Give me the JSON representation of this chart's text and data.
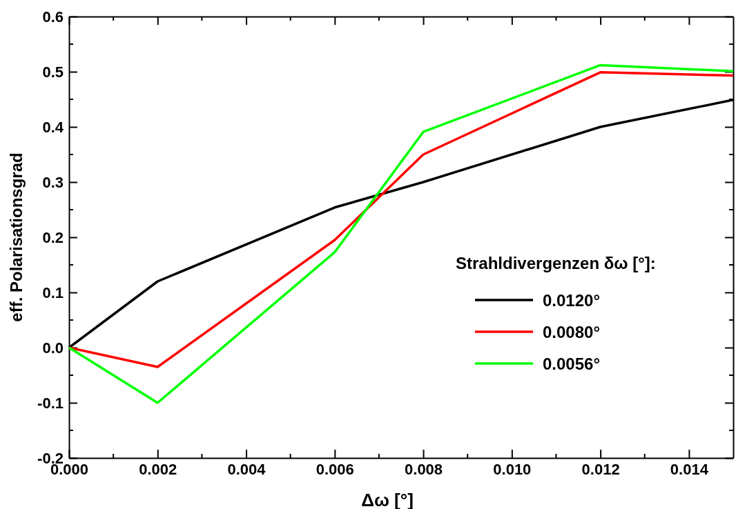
{
  "chart_data": {
    "type": "line",
    "xlabel": "Δω [°]",
    "ylabel": "eff. Polarisationsgrad",
    "legend_title": "Strahldivergenzen δω [°]:",
    "x": [
      0,
      0.002,
      0.006,
      0.008,
      0.012,
      0.015
    ],
    "series": [
      {
        "name": "0.0120°",
        "color": "#000000",
        "values": [
          0,
          0.12,
          0.254,
          0.3,
          0.4,
          0.449
        ]
      },
      {
        "name": "0.0080°",
        "color": "#ff0000",
        "values": [
          0,
          -0.035,
          0.195,
          0.35,
          0.499,
          0.493
        ]
      },
      {
        "name": "0.0056°",
        "color": "#00ff00",
        "values": [
          0,
          -0.1,
          0.173,
          0.391,
          0.512,
          0.501
        ]
      }
    ],
    "xlim": [
      0,
      0.015
    ],
    "xticks": [
      {
        "value": 0,
        "label": "0.000"
      },
      {
        "value": 0.002,
        "label": "0.002"
      },
      {
        "value": 0.004,
        "label": "0.004"
      },
      {
        "value": 0.006,
        "label": "0.006"
      },
      {
        "value": 0.008,
        "label": "0.008"
      },
      {
        "value": 0.01,
        "label": "0.010"
      },
      {
        "value": 0.012,
        "label": "0.012"
      },
      {
        "value": 0.014,
        "label": "0.014"
      }
    ],
    "ylim": [
      -0.2,
      0.6
    ],
    "yticks": [
      {
        "value": -0.2,
        "label": "-0.2"
      },
      {
        "value": -0.1,
        "label": "-0.1"
      },
      {
        "value": 0,
        "label": "0.0"
      },
      {
        "value": 0.1,
        "label": "0.1"
      },
      {
        "value": 0.2,
        "label": "0.2"
      },
      {
        "value": 0.3,
        "label": "0.3"
      },
      {
        "value": 0.4,
        "label": "0.4"
      },
      {
        "value": 0.5,
        "label": "0.5"
      },
      {
        "value": 0.6,
        "label": "0.6"
      }
    ],
    "legend": "bottom right",
    "marker": "none",
    "line_style": "solid",
    "grid": false
  }
}
